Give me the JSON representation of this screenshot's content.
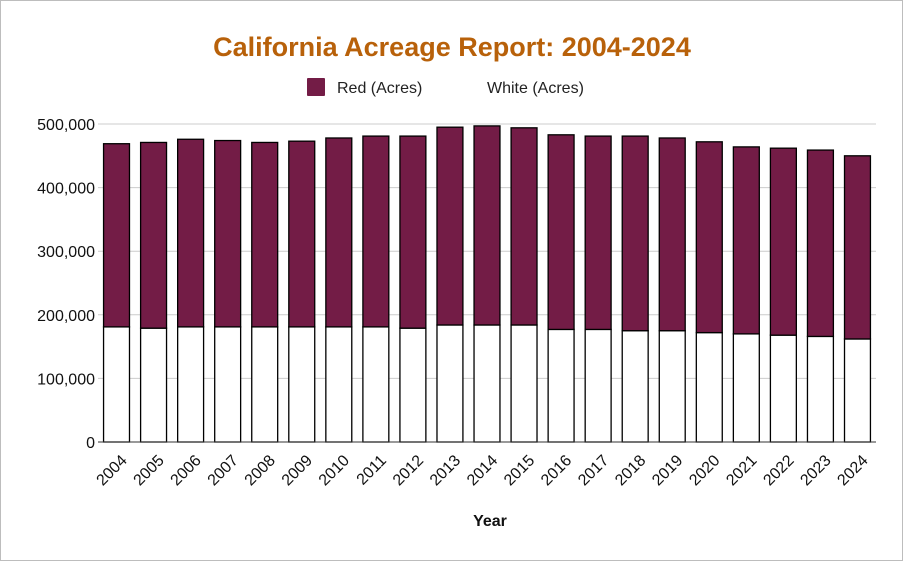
{
  "chart_data": {
    "type": "bar",
    "stacked": true,
    "title": "California Acreage Report: 2004-2024",
    "xlabel": "Year",
    "ylabel": "",
    "ylim": [
      0,
      500000
    ],
    "yticks": [
      0,
      100000,
      200000,
      300000,
      400000,
      500000
    ],
    "ytick_labels": [
      "0",
      "100,000",
      "200,000",
      "300,000",
      "400,000",
      "500,000"
    ],
    "grid": true,
    "legend_position": "top-center",
    "categories": [
      "2004",
      "2005",
      "2006",
      "2007",
      "2008",
      "2009",
      "2010",
      "2011",
      "2012",
      "2013",
      "2014",
      "2015",
      "2016",
      "2017",
      "2018",
      "2019",
      "2020",
      "2021",
      "2022",
      "2023",
      "2024"
    ],
    "series": [
      {
        "name": "White (Acres)",
        "color": "#ffffff",
        "values": [
          181000,
          179000,
          181000,
          181000,
          181000,
          181000,
          181000,
          181000,
          179000,
          184000,
          184000,
          184000,
          177000,
          177000,
          175000,
          175000,
          172000,
          170000,
          168000,
          166000,
          162000
        ]
      },
      {
        "name": "Red (Acres)",
        "color": "#731c46",
        "values": [
          288000,
          292000,
          295000,
          293000,
          290000,
          292000,
          297000,
          300000,
          302000,
          311000,
          313000,
          310000,
          306000,
          304000,
          306000,
          303000,
          300000,
          294000,
          294000,
          293000,
          288000
        ]
      }
    ],
    "legend_order": [
      "Red (Acres)",
      "White (Acres)"
    ],
    "title_color": "#b8610a"
  }
}
